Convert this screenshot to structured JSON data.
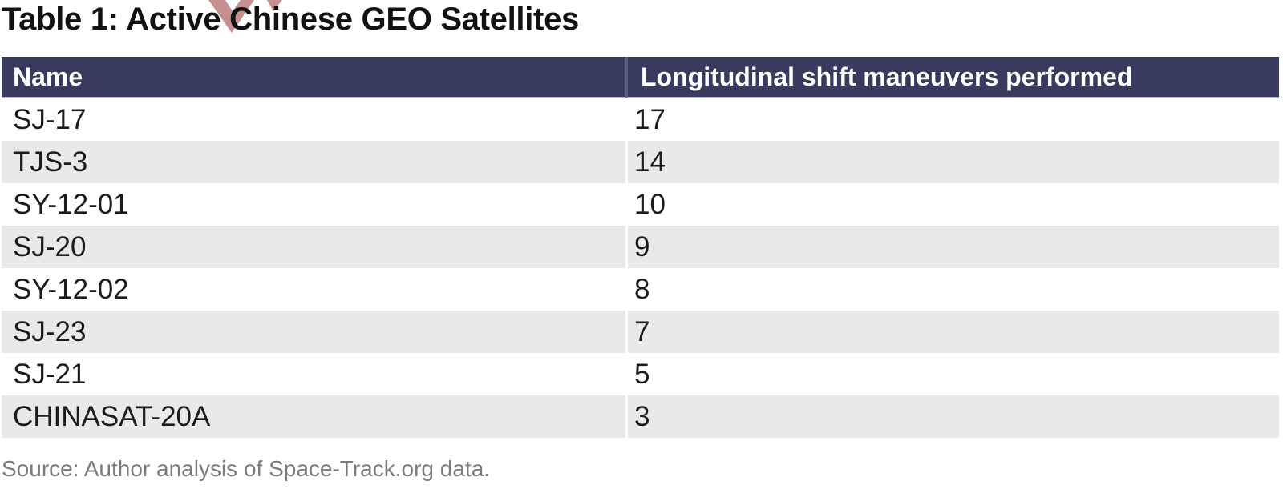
{
  "title": "Table 1: Active Chinese GEO Satellites",
  "table": {
    "columns": [
      "Name",
      "Longitudinal shift maneuvers performed"
    ],
    "rows": [
      {
        "name": "SJ-17",
        "value": "17"
      },
      {
        "name": "TJS-3",
        "value": "14"
      },
      {
        "name": "SY-12-01",
        "value": "10"
      },
      {
        "name": "SJ-20",
        "value": "9"
      },
      {
        "name": "SY-12-02",
        "value": "8"
      },
      {
        "name": "SJ-23",
        "value": "7"
      },
      {
        "name": "SJ-21",
        "value": "5"
      },
      {
        "name": "CHINASAT-20A",
        "value": "3"
      }
    ]
  },
  "source": "Source: Author analysis of Space-Track.org data.",
  "colors": {
    "header_bg": "#383b5e",
    "header_text": "#ffffff",
    "row_alt_bg": "#e9e9e9",
    "body_text": "#1c1c1c",
    "source_text": "#7b7b7b",
    "header_underline": "#b3b5c4",
    "watermark": "#c68f90"
  },
  "chart_data": {
    "type": "table",
    "title": "Table 1: Active Chinese GEO Satellites",
    "columns": [
      "Name",
      "Longitudinal shift maneuvers performed"
    ],
    "categories": [
      "SJ-17",
      "TJS-3",
      "SY-12-01",
      "SJ-20",
      "SY-12-02",
      "SJ-23",
      "SJ-21",
      "CHINASAT-20A"
    ],
    "values": [
      17,
      14,
      10,
      9,
      8,
      7,
      5,
      3
    ],
    "source": "Source: Author analysis of Space-Track.org data."
  }
}
